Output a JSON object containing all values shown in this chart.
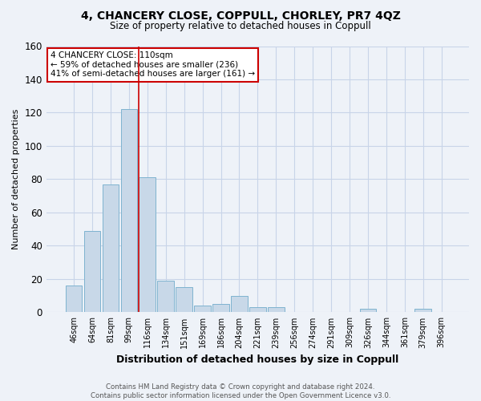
{
  "title": "4, CHANCERY CLOSE, COPPULL, CHORLEY, PR7 4QZ",
  "subtitle": "Size of property relative to detached houses in Coppull",
  "xlabel": "Distribution of detached houses by size in Coppull",
  "ylabel": "Number of detached properties",
  "footer1": "Contains HM Land Registry data © Crown copyright and database right 2024.",
  "footer2": "Contains public sector information licensed under the Open Government Licence v3.0.",
  "categories": [
    "46sqm",
    "64sqm",
    "81sqm",
    "99sqm",
    "116sqm",
    "134sqm",
    "151sqm",
    "169sqm",
    "186sqm",
    "204sqm",
    "221sqm",
    "239sqm",
    "256sqm",
    "274sqm",
    "291sqm",
    "309sqm",
    "326sqm",
    "344sqm",
    "361sqm",
    "379sqm",
    "396sqm"
  ],
  "values": [
    16,
    49,
    77,
    122,
    81,
    19,
    15,
    4,
    5,
    10,
    3,
    3,
    0,
    0,
    0,
    0,
    2,
    0,
    0,
    2,
    0
  ],
  "bar_color": "#c8d8e8",
  "bar_edge_color": "#7fb3d0",
  "annotation_title": "4 CHANCERY CLOSE: 110sqm",
  "annotation_line1": "← 59% of detached houses are smaller (236)",
  "annotation_line2": "41% of semi-detached houses are larger (161) →",
  "annotation_box_color": "#ffffff",
  "annotation_border_color": "#cc0000",
  "ylim": [
    0,
    160
  ],
  "yticks": [
    0,
    20,
    40,
    60,
    80,
    100,
    120,
    140,
    160
  ],
  "red_line_color": "#cc0000",
  "grid_color": "#c8d4e8",
  "background_color": "#eef2f8"
}
